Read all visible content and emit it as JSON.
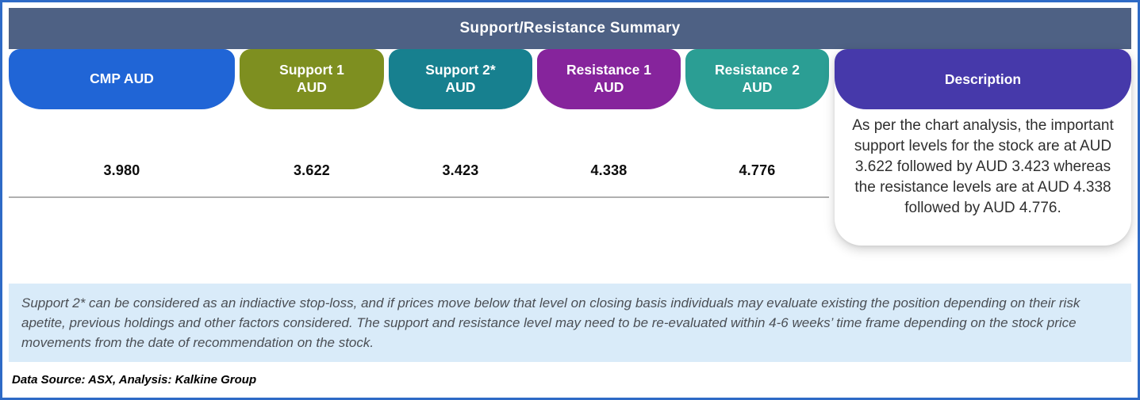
{
  "table": {
    "title": "Support/Resistance Summary",
    "columns": [
      {
        "label_line1": "CMP AUD",
        "label_line2": "",
        "value": "3.980",
        "color": "#2065d6"
      },
      {
        "label_line1": "Support 1",
        "label_line2": "AUD",
        "value": "3.622",
        "color": "#7e8f20"
      },
      {
        "label_line1": "Support 2*",
        "label_line2": "AUD",
        "value": "3.423",
        "color": "#17808f"
      },
      {
        "label_line1": "Resistance 1",
        "label_line2": "AUD",
        "value": "4.338",
        "color": "#86249c"
      },
      {
        "label_line1": "Resistance 2",
        "label_line2": "AUD",
        "value": "4.776",
        "color": "#2b9e94"
      }
    ],
    "description": {
      "label": "Description",
      "color": "#4639aa",
      "text": "As per the chart analysis, the important support levels for the stock are at AUD 3.622 followed by AUD 3.423 whereas the resistance levels are at AUD 4.338 followed by AUD 4.776."
    }
  },
  "disclaimer": "Support 2* can be considered as an indiactive stop-loss, and if prices move below that level on closing basis individuals may evaluate existing the position depending on their risk apetite, previous holdings and other factors considered. The support and resistance level may need to be re-evaluated within 4-6 weeks’ time frame depending on the stock price movements from  the date of recommendation on the stock.",
  "data_source": "Data Source: ASX, Analysis: Kalkine Group",
  "colors": {
    "title_bar": "#4e6184",
    "outer_border": "#2e6ac6",
    "disclaimer_bg": "#d9ebf9",
    "divider": "#b0b0b0"
  },
  "chart_data": {
    "type": "table",
    "title": "Support/Resistance Summary",
    "columns": [
      "CMP AUD",
      "Support 1 AUD",
      "Support 2* AUD",
      "Resistance 1 AUD",
      "Resistance 2 AUD",
      "Description"
    ],
    "rows": [
      [
        "3.980",
        "3.622",
        "3.423",
        "4.338",
        "4.776",
        "As per the chart analysis, the important support levels for the stock are at AUD 3.622 followed by AUD 3.423 whereas the resistance levels are at AUD 4.338 followed by AUD 4.776."
      ]
    ],
    "currency": "AUD"
  }
}
